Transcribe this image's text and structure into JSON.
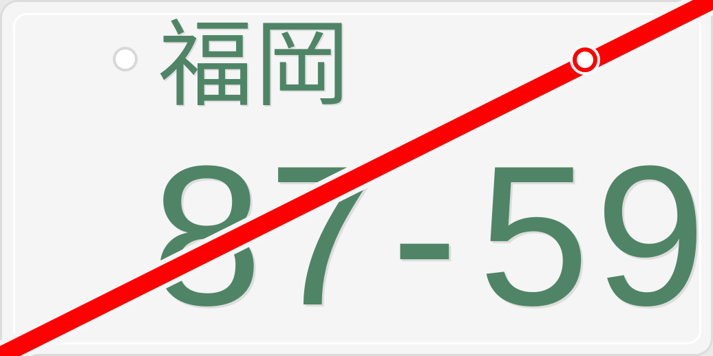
{
  "plate": {
    "region": "福岡",
    "number_left": "87",
    "number_dash": "-",
    "number_right": "59"
  },
  "colors": {
    "text": "#4f8566",
    "plate_bg": "#f5f5f5",
    "strike": "#ff0000"
  },
  "icons": {
    "left_mount": "bolt-hole-icon",
    "right_mount": "bolt-hole-icon",
    "strike_line": "diagonal-strike-icon"
  }
}
